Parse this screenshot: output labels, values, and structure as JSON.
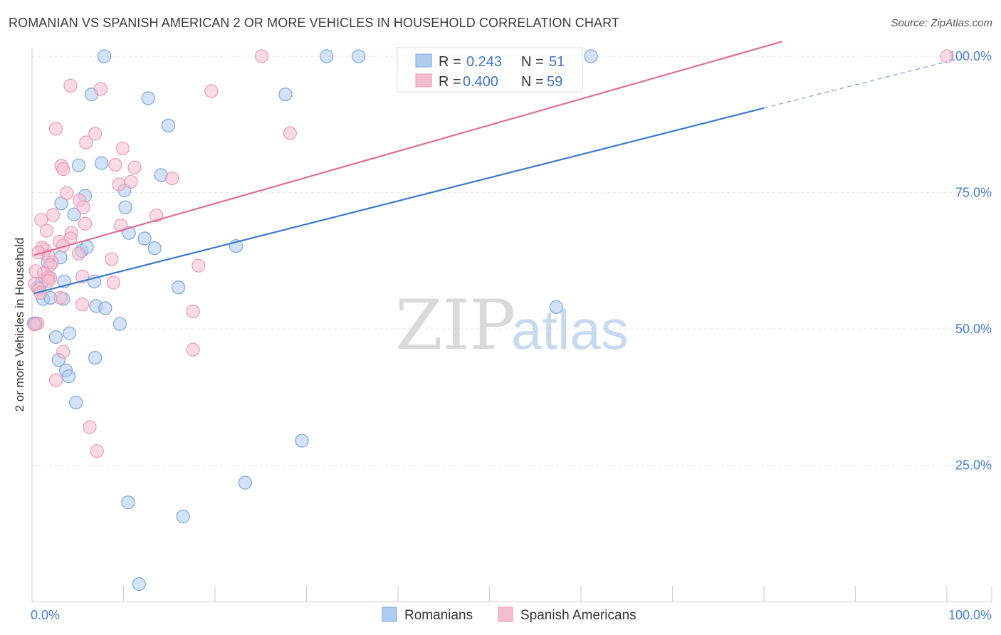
{
  "chart_data": {
    "type": "scatter",
    "title": "ROMANIAN VS SPANISH AMERICAN 2 OR MORE VEHICLES IN HOUSEHOLD CORRELATION CHART",
    "source": "Source: ZipAtlas.com",
    "xlabel": "",
    "ylabel": "2 or more Vehicles in Household",
    "xlim": [
      0,
      100
    ],
    "ylim": [
      0,
      105
    ],
    "x_tick_labels": [
      "0.0%",
      "100.0%"
    ],
    "y_ticks": [
      25,
      50,
      75,
      100
    ],
    "y_tick_labels": [
      "25.0%",
      "50.0%",
      "75.0%",
      "100.0%"
    ],
    "watermark": {
      "zip": "ZIP",
      "atlas": "atlas"
    },
    "stats_legend": [
      {
        "series": "Romanians",
        "r_label": "R =",
        "r_value": "0.243",
        "n_label": "N =",
        "n_value": "51"
      },
      {
        "series": "Spanish Americans",
        "r_label": "R =",
        "r_value": "0.400",
        "n_label": "N =",
        "n_value": "59"
      }
    ],
    "colors": {
      "Romanians": {
        "fill": "#aecbf0",
        "stroke": "#7ea6dc",
        "line": "#3a78cc"
      },
      "Spanish Americans": {
        "fill": "#f6bdd0",
        "stroke": "#e99ab5",
        "line": "#e06e96"
      },
      "grid": "#e3e3e3",
      "axis": "#cccccc",
      "tick_label": "#4a7cc7"
    },
    "series": [
      {
        "name": "Romanians",
        "trend": {
          "x0": 0.2,
          "y0": 56.5,
          "x1": 80,
          "y1": 90.5,
          "dashed_to_x": 100,
          "dashed_to_y": 99
        },
        "points": [
          [
            7.9,
            100.0
          ],
          [
            32.2,
            100.0
          ],
          [
            35.7,
            100.0
          ],
          [
            61.1,
            100.0
          ],
          [
            6.5,
            93.0
          ],
          [
            12.7,
            92.3
          ],
          [
            27.7,
            93.0
          ],
          [
            14.9,
            87.3
          ],
          [
            5.1,
            80.0
          ],
          [
            7.6,
            80.4
          ],
          [
            14.1,
            78.2
          ],
          [
            10.1,
            75.4
          ],
          [
            5.8,
            74.4
          ],
          [
            3.2,
            73.0
          ],
          [
            10.2,
            72.3
          ],
          [
            4.6,
            71.0
          ],
          [
            10.6,
            67.6
          ],
          [
            12.3,
            66.6
          ],
          [
            13.4,
            64.8
          ],
          [
            22.3,
            65.2
          ],
          [
            5.4,
            64.3
          ],
          [
            6.0,
            65.0
          ],
          [
            3.1,
            63.1
          ],
          [
            1.7,
            62.2
          ],
          [
            1.7,
            59.4
          ],
          [
            3.5,
            58.7
          ],
          [
            1.0,
            58.3
          ],
          [
            0.6,
            57.6
          ],
          [
            6.8,
            58.7
          ],
          [
            16.0,
            57.6
          ],
          [
            1.2,
            55.5
          ],
          [
            2.0,
            55.7
          ],
          [
            3.4,
            55.5
          ],
          [
            7.0,
            54.2
          ],
          [
            8.0,
            53.8
          ],
          [
            0.4,
            51.0
          ],
          [
            9.6,
            50.9
          ],
          [
            4.1,
            49.2
          ],
          [
            2.6,
            48.5
          ],
          [
            57.3,
            54.0
          ],
          [
            2.9,
            44.3
          ],
          [
            6.9,
            44.7
          ],
          [
            3.7,
            42.4
          ],
          [
            4.0,
            41.3
          ],
          [
            4.8,
            36.5
          ],
          [
            29.5,
            29.5
          ],
          [
            23.3,
            21.8
          ],
          [
            10.5,
            18.2
          ],
          [
            16.5,
            15.6
          ],
          [
            11.7,
            3.2
          ],
          [
            0.2,
            51.0
          ]
        ]
      },
      {
        "name": "Spanish Americans",
        "trend": {
          "x0": 0.2,
          "y0": 63.5,
          "x1": 82,
          "y1": 102.7
        },
        "points": [
          [
            25.1,
            100.0
          ],
          [
            100.0,
            100.0
          ],
          [
            4.2,
            94.6
          ],
          [
            7.5,
            94.0
          ],
          [
            19.6,
            93.6
          ],
          [
            2.6,
            86.7
          ],
          [
            5.9,
            84.2
          ],
          [
            6.9,
            85.8
          ],
          [
            28.2,
            85.9
          ],
          [
            9.9,
            83.1
          ],
          [
            3.2,
            79.9
          ],
          [
            3.4,
            79.3
          ],
          [
            9.1,
            80.1
          ],
          [
            11.2,
            79.6
          ],
          [
            15.3,
            77.6
          ],
          [
            9.5,
            76.5
          ],
          [
            10.8,
            77.0
          ],
          [
            3.8,
            74.9
          ],
          [
            5.2,
            73.6
          ],
          [
            5.6,
            72.3
          ],
          [
            13.6,
            70.8
          ],
          [
            2.3,
            70.9
          ],
          [
            1.0,
            70.0
          ],
          [
            5.8,
            69.3
          ],
          [
            9.7,
            69.0
          ],
          [
            1.6,
            68.0
          ],
          [
            4.3,
            67.6
          ],
          [
            4.2,
            66.6
          ],
          [
            3.0,
            66.0
          ],
          [
            3.4,
            65.3
          ],
          [
            1.1,
            64.9
          ],
          [
            1.4,
            64.5
          ],
          [
            0.7,
            64.0
          ],
          [
            1.8,
            63.4
          ],
          [
            5.1,
            63.8
          ],
          [
            8.7,
            62.8
          ],
          [
            2.2,
            62.2
          ],
          [
            2.0,
            61.7
          ],
          [
            18.2,
            61.6
          ],
          [
            0.4,
            60.6
          ],
          [
            1.3,
            60.2
          ],
          [
            1.8,
            59.5
          ],
          [
            2.0,
            59.3
          ],
          [
            5.5,
            59.6
          ],
          [
            0.3,
            58.2
          ],
          [
            0.8,
            57.3
          ],
          [
            8.9,
            58.5
          ],
          [
            1.8,
            58.8
          ],
          [
            3.1,
            55.7
          ],
          [
            5.5,
            54.5
          ],
          [
            17.6,
            53.2
          ],
          [
            0.6,
            51.0
          ],
          [
            0.3,
            50.8
          ],
          [
            17.6,
            46.2
          ],
          [
            3.4,
            45.8
          ],
          [
            2.6,
            40.6
          ],
          [
            6.3,
            32.0
          ],
          [
            7.1,
            27.6
          ],
          [
            0.9,
            56.6
          ]
        ]
      }
    ]
  }
}
